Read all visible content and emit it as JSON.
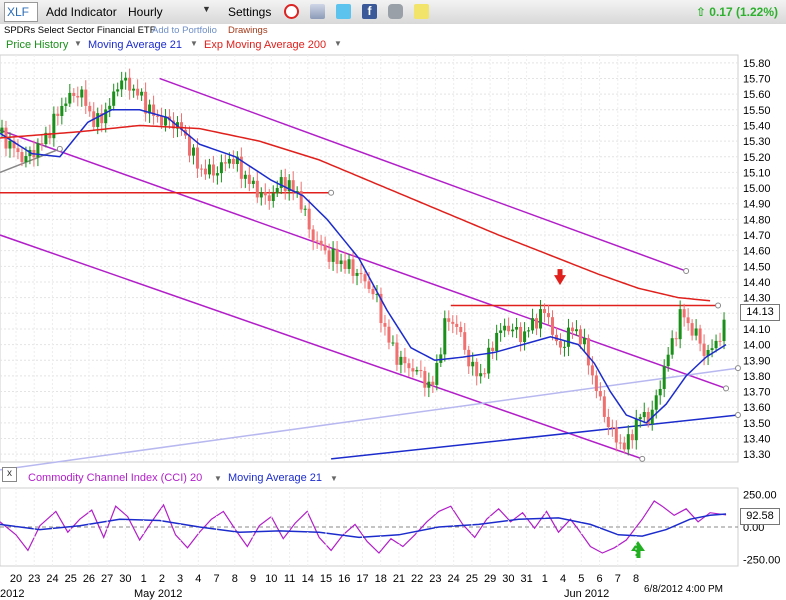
{
  "toolbar": {
    "symbol": "XLF",
    "add_indicator": "Add Indicator",
    "interval": "Hourly",
    "settings": "Settings",
    "change": "0.17 (1.22%)"
  },
  "subbar": {
    "name": "SPDRs Select Sector Financial ETF",
    "add_to_portfolio": "Add to Portfolio",
    "drawings": "Drawings"
  },
  "legend": {
    "price_history": "Price History",
    "ma21": "Moving Average 21",
    "ema200": "Exp Moving Average 200"
  },
  "cci_legend": {
    "close": "x",
    "cci": "Commodity Channel Index (CCI) 20",
    "ma21": "Moving Average 21"
  },
  "footer": {
    "timestamp": "6/8/2012 4:00 PM",
    "month_2012_left": "2012",
    "month_may": "May 2012",
    "month_jun": "Jun 2012"
  },
  "colors": {
    "up": "#1a8f1a",
    "down": "#f07070",
    "ma21": "#1c2ccc",
    "ema200": "#e0201c",
    "trend": "#b21fc9",
    "cci": "#b21fc9",
    "arrow_down": "#e0201c",
    "arrow_up": "#22b022"
  },
  "chart_data": [
    {
      "type": "candlestick",
      "title": "XLF Hourly",
      "last_price": "14.13",
      "ylim": [
        13.25,
        15.85
      ],
      "yticks": [
        "15.80",
        "15.70",
        "15.60",
        "15.50",
        "15.40",
        "15.30",
        "15.20",
        "15.10",
        "15.00",
        "14.90",
        "14.80",
        "14.70",
        "14.60",
        "14.50",
        "14.40",
        "14.30",
        "14.20",
        "14.10",
        "14.00",
        "13.90",
        "13.80",
        "13.70",
        "13.60",
        "13.50",
        "13.40",
        "13.30"
      ],
      "x_labels": [
        "20",
        "23",
        "24",
        "25",
        "26",
        "27",
        "30",
        "1",
        "2",
        "3",
        "4",
        "7",
        "8",
        "9",
        "10",
        "11",
        "14",
        "15",
        "16",
        "17",
        "18",
        "21",
        "22",
        "23",
        "24",
        "25",
        "29",
        "30",
        "31",
        "1",
        "4",
        "5",
        "6",
        "7",
        "8"
      ],
      "grid": true,
      "price_anchors": [
        [
          0,
          15.35
        ],
        [
          12,
          15.18
        ],
        [
          22,
          15.3
        ],
        [
          32,
          15.55
        ],
        [
          40,
          15.62
        ],
        [
          48,
          15.4
        ],
        [
          56,
          15.55
        ],
        [
          60,
          15.7
        ],
        [
          68,
          15.62
        ],
        [
          78,
          15.45
        ],
        [
          90,
          15.4
        ],
        [
          100,
          15.12
        ],
        [
          108,
          15.1
        ],
        [
          116,
          15.2
        ],
        [
          124,
          15.05
        ],
        [
          134,
          14.92
        ],
        [
          142,
          15.05
        ],
        [
          150,
          14.95
        ],
        [
          156,
          14.7
        ],
        [
          164,
          14.58
        ],
        [
          172,
          14.52
        ],
        [
          180,
          14.45
        ],
        [
          188,
          14.32
        ],
        [
          194,
          14.05
        ],
        [
          200,
          13.9
        ],
        [
          206,
          13.85
        ],
        [
          212,
          13.8
        ],
        [
          216,
          13.7
        ],
        [
          220,
          13.92
        ],
        [
          224,
          14.18
        ],
        [
          230,
          14.1
        ],
        [
          236,
          13.85
        ],
        [
          242,
          13.8
        ],
        [
          248,
          14.05
        ],
        [
          254,
          14.12
        ],
        [
          262,
          14.05
        ],
        [
          268,
          14.15
        ],
        [
          274,
          14.22
        ],
        [
          280,
          13.95
        ],
        [
          286,
          14.1
        ],
        [
          290,
          14.08
        ],
        [
          294,
          13.95
        ],
        [
          298,
          13.75
        ],
        [
          302,
          13.6
        ],
        [
          306,
          13.45
        ],
        [
          310,
          13.38
        ],
        [
          314,
          13.34
        ],
        [
          318,
          13.48
        ],
        [
          322,
          13.56
        ],
        [
          326,
          13.52
        ],
        [
          330,
          13.7
        ],
        [
          334,
          13.9
        ],
        [
          338,
          14.05
        ],
        [
          342,
          14.22
        ],
        [
          346,
          14.1
        ],
        [
          350,
          14.05
        ],
        [
          354,
          13.92
        ],
        [
          358,
          14.0
        ],
        [
          362,
          14.08
        ],
        [
          364,
          14.12
        ]
      ],
      "series": [
        {
          "name": "Moving Average 21",
          "color": "#1c2ccc",
          "points": [
            [
              0,
              15.35
            ],
            [
              16,
              15.22
            ],
            [
              30,
              15.2
            ],
            [
              44,
              15.42
            ],
            [
              56,
              15.5
            ],
            [
              70,
              15.5
            ],
            [
              84,
              15.45
            ],
            [
              100,
              15.28
            ],
            [
              118,
              15.2
            ],
            [
              136,
              15.05
            ],
            [
              152,
              14.95
            ],
            [
              164,
              14.8
            ],
            [
              180,
              14.55
            ],
            [
              194,
              14.22
            ],
            [
              206,
              13.98
            ],
            [
              218,
              13.9
            ],
            [
              232,
              13.92
            ],
            [
              248,
              13.95
            ],
            [
              262,
              14.0
            ],
            [
              276,
              14.05
            ],
            [
              290,
              14.0
            ],
            [
              298,
              13.88
            ],
            [
              306,
              13.7
            ],
            [
              314,
              13.55
            ],
            [
              324,
              13.5
            ],
            [
              334,
              13.62
            ],
            [
              344,
              13.8
            ],
            [
              354,
              13.92
            ],
            [
              364,
              14.0
            ]
          ]
        },
        {
          "name": "Exp Moving Average 200",
          "color": "#e0201c",
          "points": [
            [
              0,
              15.32
            ],
            [
              40,
              15.36
            ],
            [
              70,
              15.4
            ],
            [
              100,
              15.38
            ],
            [
              130,
              15.3
            ],
            [
              160,
              15.18
            ],
            [
              190,
              15.02
            ],
            [
              220,
              14.86
            ],
            [
              250,
              14.7
            ],
            [
              280,
              14.55
            ],
            [
              300,
              14.45
            ],
            [
              320,
              14.36
            ],
            [
              340,
              14.3
            ],
            [
              356,
              14.28
            ]
          ]
        }
      ],
      "trendlines": [
        {
          "from": [
            80,
            15.7
          ],
          "to": [
            344,
            14.47
          ],
          "color": "#b21fc9"
        },
        {
          "from": [
            0,
            15.37
          ],
          "to": [
            364,
            13.72
          ],
          "color": "#b21fc9"
        },
        {
          "from": [
            0,
            14.7
          ],
          "to": [
            322,
            13.27
          ],
          "color": "#b21fc9"
        },
        {
          "from": [
            226,
            14.25
          ],
          "to": [
            360,
            14.25
          ],
          "color": "#e0201c"
        },
        {
          "from": [
            0,
            14.97
          ],
          "to": [
            166,
            14.97
          ],
          "color": "#e0201c"
        },
        {
          "from": [
            0,
            15.1
          ],
          "to": [
            30,
            15.25
          ],
          "color": "#888888"
        },
        {
          "from": [
            0,
            13.2
          ],
          "to": [
            370,
            13.85
          ],
          "color": "#b8b8f0"
        },
        {
          "from": [
            166,
            13.27
          ],
          "to": [
            370,
            13.55
          ],
          "color": "#1c2ccc"
        }
      ]
    },
    {
      "type": "line",
      "title": "Commodity Channel Index (CCI) 20",
      "last_value": "92.58",
      "ylim": [
        -300,
        300
      ],
      "yticks": [
        "250.00",
        "0.00",
        "-250.00"
      ],
      "series": [
        {
          "name": "Commodity Channel Index (CCI) 20",
          "color": "#b21fc9",
          "points": [
            [
              0,
              40
            ],
            [
              8,
              -60
            ],
            [
              14,
              -180
            ],
            [
              20,
              10
            ],
            [
              28,
              120
            ],
            [
              34,
              -40
            ],
            [
              40,
              60
            ],
            [
              46,
              130
            ],
            [
              52,
              -80
            ],
            [
              58,
              160
            ],
            [
              64,
              80
            ],
            [
              70,
              -100
            ],
            [
              76,
              40
            ],
            [
              82,
              170
            ],
            [
              88,
              -60
            ],
            [
              94,
              -160
            ],
            [
              100,
              -40
            ],
            [
              106,
              60
            ],
            [
              112,
              120
            ],
            [
              118,
              -20
            ],
            [
              124,
              -150
            ],
            [
              130,
              10
            ],
            [
              136,
              80
            ],
            [
              142,
              -90
            ],
            [
              148,
              30
            ],
            [
              154,
              120
            ],
            [
              160,
              -80
            ],
            [
              166,
              -180
            ],
            [
              172,
              -60
            ],
            [
              178,
              20
            ],
            [
              184,
              -110
            ],
            [
              190,
              -200
            ],
            [
              196,
              -90
            ],
            [
              202,
              -150
            ],
            [
              208,
              -60
            ],
            [
              214,
              40
            ],
            [
              220,
              120
            ],
            [
              226,
              160
            ],
            [
              232,
              20
            ],
            [
              238,
              -80
            ],
            [
              244,
              60
            ],
            [
              250,
              140
            ],
            [
              256,
              40
            ],
            [
              262,
              110
            ],
            [
              268,
              -10
            ],
            [
              274,
              120
            ],
            [
              280,
              -40
            ],
            [
              286,
              60
            ],
            [
              290,
              -20
            ],
            [
              296,
              -150
            ],
            [
              302,
              -200
            ],
            [
              308,
              -160
            ],
            [
              314,
              -100
            ],
            [
              318,
              -20
            ],
            [
              322,
              60
            ],
            [
              328,
              200
            ],
            [
              332,
              160
            ],
            [
              338,
              90
            ],
            [
              344,
              140
            ],
            [
              350,
              40
            ],
            [
              356,
              110
            ],
            [
              364,
              93
            ]
          ]
        },
        {
          "name": "Moving Average 21",
          "color": "#1c2ccc",
          "points": [
            [
              0,
              20
            ],
            [
              20,
              -20
            ],
            [
              40,
              10
            ],
            [
              60,
              60
            ],
            [
              80,
              50
            ],
            [
              100,
              0
            ],
            [
              120,
              -40
            ],
            [
              140,
              -30
            ],
            [
              160,
              -40
            ],
            [
              180,
              -80
            ],
            [
              200,
              -60
            ],
            [
              220,
              0
            ],
            [
              240,
              20
            ],
            [
              260,
              60
            ],
            [
              280,
              70
            ],
            [
              296,
              20
            ],
            [
              310,
              -60
            ],
            [
              322,
              -70
            ],
            [
              334,
              -20
            ],
            [
              346,
              60
            ],
            [
              356,
              90
            ],
            [
              364,
              100
            ]
          ]
        }
      ]
    }
  ]
}
